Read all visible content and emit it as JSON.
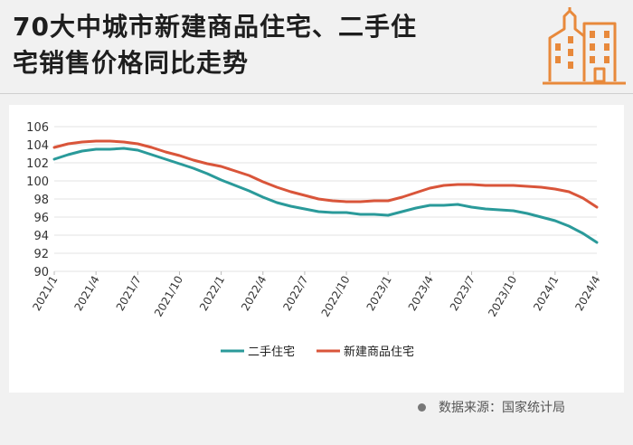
{
  "header": {
    "title_line1": "70大中城市新建商品住宅、二手住",
    "title_line2": "宅销售价格同比走势",
    "logo_icon": "buildings-icon",
    "accent_color": "#e8893b"
  },
  "source": {
    "text": "数据来源：国家统计局"
  },
  "chart_data": {
    "type": "line",
    "title": "70大中城市新建商品住宅、二手住宅销售价格同比走势",
    "xlabel": "",
    "ylabel": "",
    "ylim": [
      90,
      106
    ],
    "yticks": [
      90,
      92,
      94,
      96,
      98,
      100,
      102,
      104,
      106
    ],
    "grid": true,
    "legend_position": "bottom-center",
    "x_labels": [
      "2021/1",
      "2021/4",
      "2021/7",
      "2021/10",
      "2022/1",
      "2022/4",
      "2022/7",
      "2022/10",
      "2023/1",
      "2023/4",
      "2023/7",
      "2023/10",
      "2024/1",
      "2024/4"
    ],
    "x": [
      "2021/1",
      "2021/2",
      "2021/3",
      "2021/4",
      "2021/5",
      "2021/6",
      "2021/7",
      "2021/8",
      "2021/9",
      "2021/10",
      "2021/11",
      "2021/12",
      "2022/1",
      "2022/2",
      "2022/3",
      "2022/4",
      "2022/5",
      "2022/6",
      "2022/7",
      "2022/8",
      "2022/9",
      "2022/10",
      "2022/11",
      "2022/12",
      "2023/1",
      "2023/2",
      "2023/3",
      "2023/4",
      "2023/5",
      "2023/6",
      "2023/7",
      "2023/8",
      "2023/9",
      "2023/10",
      "2023/11",
      "2023/12",
      "2024/1",
      "2024/2",
      "2024/3",
      "2024/4"
    ],
    "series": [
      {
        "name": "二手住宅",
        "color": "#2a9a9a",
        "values": [
          102.4,
          102.9,
          103.3,
          103.5,
          103.5,
          103.6,
          103.4,
          102.9,
          102.4,
          101.9,
          101.4,
          100.8,
          100.1,
          99.5,
          98.9,
          98.2,
          97.6,
          97.2,
          96.9,
          96.6,
          96.5,
          96.5,
          96.3,
          96.3,
          96.2,
          96.6,
          97.0,
          97.3,
          97.3,
          97.4,
          97.1,
          96.9,
          96.8,
          96.7,
          96.4,
          96.0,
          95.6,
          95.0,
          94.2,
          93.2
        ]
      },
      {
        "name": "新建商品住宅",
        "color": "#d9553a",
        "values": [
          103.7,
          104.1,
          104.3,
          104.4,
          104.4,
          104.3,
          104.1,
          103.7,
          103.2,
          102.8,
          102.3,
          101.9,
          101.6,
          101.1,
          100.6,
          99.9,
          99.3,
          98.8,
          98.4,
          98.0,
          97.8,
          97.7,
          97.7,
          97.8,
          97.8,
          98.2,
          98.7,
          99.2,
          99.5,
          99.6,
          99.6,
          99.5,
          99.5,
          99.5,
          99.4,
          99.3,
          99.1,
          98.8,
          98.1,
          97.1
        ]
      }
    ]
  }
}
